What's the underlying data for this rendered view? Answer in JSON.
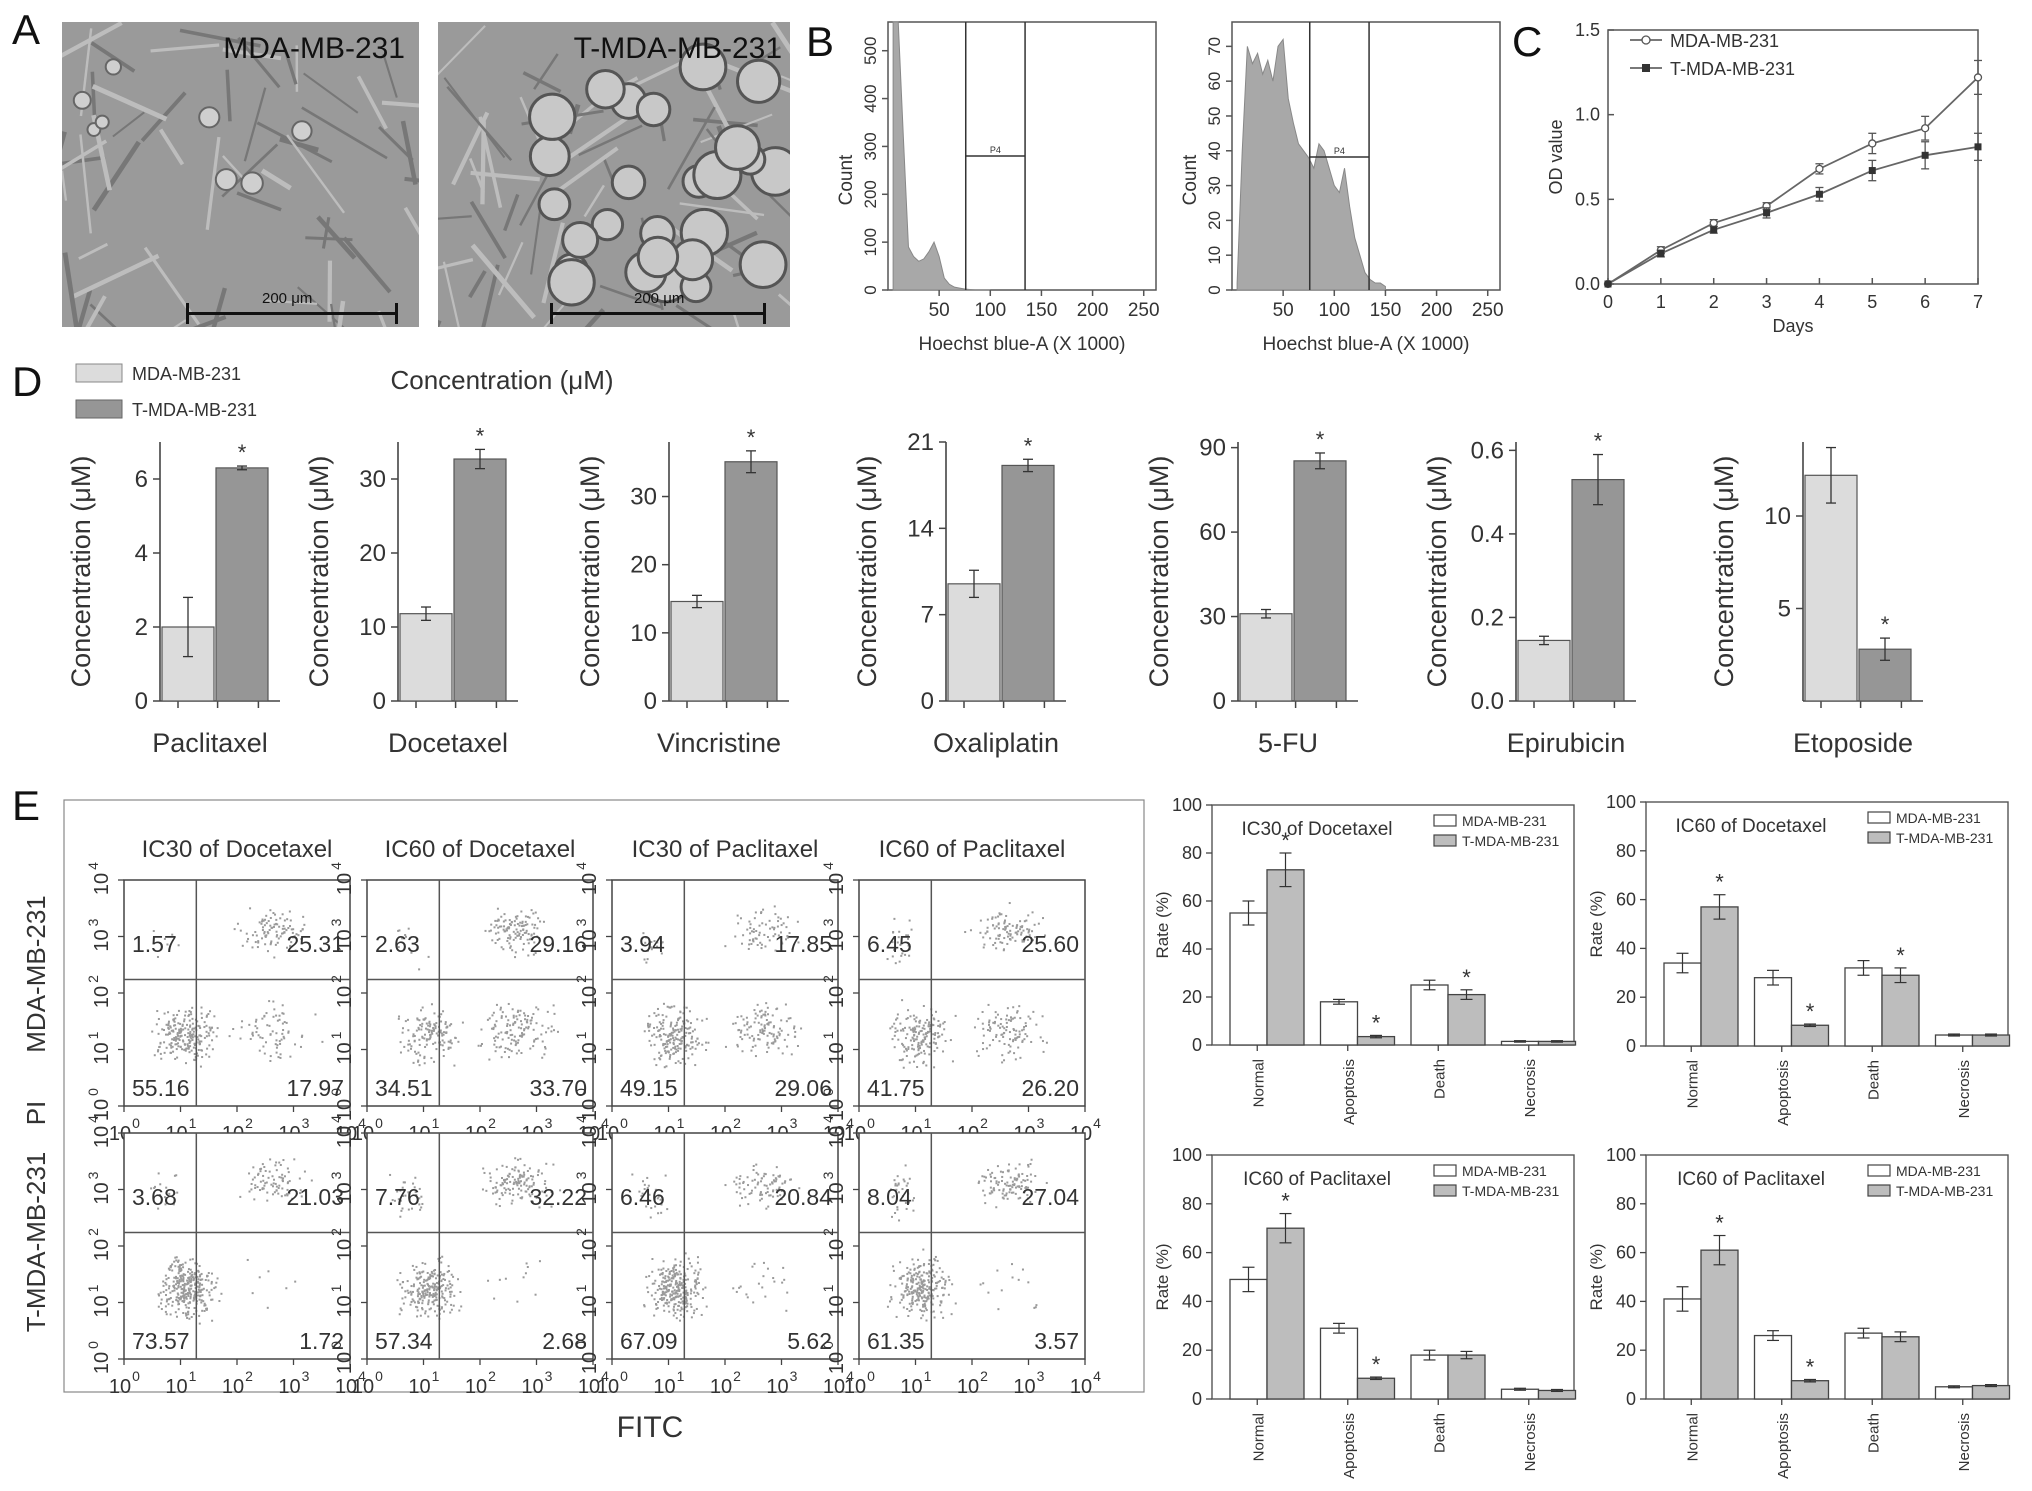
{
  "panel_labels": [
    "A",
    "B",
    "C",
    "D",
    "E"
  ],
  "panel_a": {
    "images": [
      {
        "title": "MDA-MB-231",
        "scale": "200 μm"
      },
      {
        "title": "T-MDA-MB-231",
        "scale": "200 μm"
      }
    ]
  },
  "chart_data": [
    {
      "panel": "B",
      "type": "area",
      "xlabel": "Hoechst blue-A (X 1000)",
      "ylabel": "Count",
      "xticks": [
        "50",
        "100",
        "150",
        "200",
        "250"
      ],
      "yticks": [
        "0",
        "100",
        "200",
        "300",
        "400",
        "500"
      ],
      "xlim": [
        0,
        262
      ],
      "ylim": [
        0,
        560
      ],
      "gate_lines_x": [
        76,
        134
      ],
      "gate_label": "P4",
      "x": [
        5,
        10,
        15,
        20,
        25,
        30,
        35,
        40,
        45,
        50,
        55,
        60,
        65,
        70,
        75,
        80,
        85,
        90,
        95,
        100
      ],
      "values": [
        560,
        560,
        320,
        90,
        70,
        60,
        65,
        80,
        100,
        70,
        25,
        12,
        6,
        4,
        2,
        1,
        0,
        0,
        0,
        0
      ]
    },
    {
      "panel": "B",
      "type": "area",
      "xlabel": "Hoechst blue-A (X 1000)",
      "ylabel": "Count",
      "xticks": [
        "50",
        "100",
        "150",
        "200",
        "250"
      ],
      "yticks": [
        "0",
        "10",
        "20",
        "30",
        "40",
        "50",
        "60",
        "70"
      ],
      "xlim": [
        0,
        262
      ],
      "ylim": [
        0,
        77
      ],
      "gate_lines_x": [
        76,
        134
      ],
      "gate_label": "P4",
      "x": [
        5,
        10,
        15,
        20,
        25,
        30,
        35,
        40,
        45,
        50,
        55,
        60,
        65,
        70,
        75,
        80,
        85,
        90,
        95,
        100,
        105,
        110,
        115,
        120,
        125,
        130,
        135,
        140,
        145,
        150
      ],
      "values": [
        2,
        40,
        70,
        65,
        68,
        62,
        66,
        60,
        70,
        72,
        55,
        48,
        42,
        40,
        38,
        35,
        42,
        40,
        35,
        30,
        28,
        35,
        24,
        15,
        10,
        5,
        3,
        2,
        2,
        1
      ]
    },
    {
      "panel": "C",
      "type": "line",
      "xlabel": "Days",
      "ylabel": "OD value",
      "x": [
        0,
        1,
        2,
        3,
        4,
        5,
        6,
        7
      ],
      "xlim": [
        0,
        7
      ],
      "ylim": [
        0,
        1.5
      ],
      "xticks": [
        "0",
        "1",
        "2",
        "3",
        "4",
        "5",
        "6",
        "7"
      ],
      "yticks": [
        "0.0",
        "0.5",
        "1.0",
        "1.5"
      ],
      "legend_position": "top-left",
      "series": [
        {
          "name": "MDA-MB-231",
          "values": [
            0,
            0.2,
            0.36,
            0.46,
            0.68,
            0.83,
            0.92,
            1.22
          ],
          "errors": [
            0,
            0.02,
            0.02,
            0.02,
            0.03,
            0.06,
            0.07,
            0.1
          ]
        },
        {
          "name": "T-MDA-MB-231",
          "values": [
            0,
            0.18,
            0.32,
            0.42,
            0.53,
            0.67,
            0.76,
            0.81
          ],
          "errors": [
            0,
            0.02,
            0.02,
            0.03,
            0.04,
            0.06,
            0.08,
            0.08
          ]
        }
      ]
    },
    {
      "panel": "D",
      "type": "bar",
      "title": "Concentration (μM)",
      "legend": [
        "MDA-MB-231",
        "T-MDA-MB-231"
      ],
      "legend_position": "top-left",
      "ylabel": "Concentration (μM)",
      "subplots": [
        {
          "drug": "Paclitaxel",
          "ylim": [
            0,
            7
          ],
          "yticks": [
            "0",
            "2",
            "4",
            "6"
          ],
          "values": [
            2.0,
            6.3
          ],
          "errors": [
            0.8,
            0.05
          ],
          "star": [
            false,
            true
          ]
        },
        {
          "drug": "Docetaxel",
          "ylim": [
            0,
            35
          ],
          "yticks": [
            "0",
            "10",
            "20",
            "30"
          ],
          "values": [
            11.8,
            32.7
          ],
          "errors": [
            0.9,
            1.3
          ],
          "star": [
            false,
            true
          ]
        },
        {
          "drug": "Vincristine",
          "ylim": [
            0,
            38
          ],
          "yticks": [
            "0",
            "10",
            "20",
            "30"
          ],
          "values": [
            14.6,
            35.1
          ],
          "errors": [
            0.9,
            1.6
          ],
          "star": [
            false,
            true
          ]
        },
        {
          "drug": "Oxaliplatin",
          "ylim": [
            0,
            21
          ],
          "yticks": [
            "0",
            "7",
            "14",
            "21"
          ],
          "values": [
            9.5,
            19.1
          ],
          "errors": [
            1.1,
            0.5
          ],
          "star": [
            false,
            true
          ]
        },
        {
          "drug": "5-FU",
          "ylim": [
            0,
            92
          ],
          "yticks": [
            "0",
            "30",
            "60",
            "90"
          ],
          "values": [
            31.0,
            85.3
          ],
          "errors": [
            1.5,
            2.8
          ],
          "star": [
            false,
            true
          ]
        },
        {
          "drug": "Epirubicin",
          "ylim": [
            0,
            0.62
          ],
          "yticks": [
            "0.0",
            "0.2",
            "0.4",
            "0.6"
          ],
          "values": [
            0.145,
            0.53
          ],
          "errors": [
            0.01,
            0.06
          ],
          "star": [
            false,
            true
          ]
        },
        {
          "drug": "Etoposide",
          "ylim": [
            0,
            14
          ],
          "yticks": [
            "5",
            "10"
          ],
          "values": [
            12.2,
            2.8
          ],
          "errors": [
            1.5,
            0.6
          ],
          "star": [
            false,
            true
          ]
        }
      ]
    },
    {
      "panel": "E",
      "type": "scatter",
      "xlabel": "FITC",
      "ylabel_group": "PI",
      "row_labels": [
        "MDA-MB-231",
        "T-MDA-MB-231"
      ],
      "column_titles": [
        "IC30 of Docetaxel",
        "IC60 of Docetaxel",
        "IC30 of Paclitaxel",
        "IC60 of Paclitaxel"
      ],
      "axis_ticks": [
        "10",
        "0",
        "1",
        "2",
        "3",
        "4"
      ],
      "quadrants": [
        [
          {
            "ul": "1.57",
            "ur": "25.31",
            "ll": "55.16",
            "lr": "17.97"
          },
          {
            "ul": "2.63",
            "ur": "29.16",
            "ll": "34.51",
            "lr": "33.70"
          },
          {
            "ul": "3.94",
            "ur": "17.85",
            "ll": "49.15",
            "lr": "29.06"
          },
          {
            "ul": "6.45",
            "ur": "25.60",
            "ll": "41.75",
            "lr": "26.20"
          }
        ],
        [
          {
            "ul": "3.68",
            "ur": "21.03",
            "ll": "73.57",
            "lr": "1.72"
          },
          {
            "ul": "7.76",
            "ur": "32.22",
            "ll": "57.34",
            "lr": "2.68"
          },
          {
            "ul": "6.46",
            "ur": "20.84",
            "ll": "67.09",
            "lr": "5.62"
          },
          {
            "ul": "8.04",
            "ur": "27.04",
            "ll": "61.35",
            "lr": "3.57"
          }
        ]
      ]
    },
    {
      "panel": "E",
      "type": "bar",
      "ylabel": "Rate (%)",
      "ylim": [
        0,
        100
      ],
      "yticks": [
        "0",
        "20",
        "40",
        "60",
        "80",
        "100"
      ],
      "categories": [
        "Normal",
        "Apoptosis",
        "Death",
        "Necrosis"
      ],
      "legend": [
        "MDA-MB-231",
        "T-MDA-MB-231"
      ],
      "legend_position": "top-right",
      "subplots": [
        {
          "title": "IC30 of Docetaxel",
          "series": [
            {
              "name": "MDA-MB-231",
              "values": [
                55,
                18,
                25,
                1.5
              ],
              "errors": [
                5,
                1,
                2,
                0.3
              ]
            },
            {
              "name": "T-MDA-MB-231",
              "values": [
                73,
                3.5,
                21,
                1.5
              ],
              "errors": [
                7,
                0.5,
                2,
                0.3
              ]
            }
          ],
          "stars": [
            1,
            1,
            1,
            0
          ]
        },
        {
          "title": "IC60 of Docetaxel",
          "series": [
            {
              "name": "MDA-MB-231",
              "values": [
                34,
                28,
                32,
                4.5
              ],
              "errors": [
                4,
                3,
                3,
                0.4
              ]
            },
            {
              "name": "T-MDA-MB-231",
              "values": [
                57,
                8.5,
                29,
                4.5
              ],
              "errors": [
                5,
                0.5,
                3,
                0.4
              ]
            }
          ],
          "stars": [
            1,
            1,
            1,
            0
          ]
        },
        {
          "title": "IC60 of Paclitaxel",
          "series": [
            {
              "name": "MDA-MB-231",
              "values": [
                49,
                29,
                18,
                4
              ],
              "errors": [
                5,
                2,
                2,
                0.4
              ]
            },
            {
              "name": "T-MDA-MB-231",
              "values": [
                70,
                8.5,
                18,
                3.5
              ],
              "errors": [
                6,
                0.5,
                1.5,
                0.4
              ]
            }
          ],
          "stars": [
            1,
            1,
            0,
            0
          ]
        },
        {
          "title": "IC60 of Paclitaxel",
          "series": [
            {
              "name": "MDA-MB-231",
              "values": [
                41,
                26,
                27,
                5
              ],
              "errors": [
                5,
                2,
                2,
                0.4
              ]
            },
            {
              "name": "T-MDA-MB-231",
              "values": [
                61,
                7.5,
                25.5,
                5.5
              ],
              "errors": [
                6,
                0.5,
                2,
                0.4
              ]
            }
          ],
          "stars": [
            1,
            1,
            0,
            0
          ]
        }
      ]
    }
  ],
  "colors": {
    "light_bar": "#dcdcdc",
    "dark_bar": "#969696",
    "axis": "#555555",
    "dot": "#9a9a9a",
    "text": "#333333"
  }
}
